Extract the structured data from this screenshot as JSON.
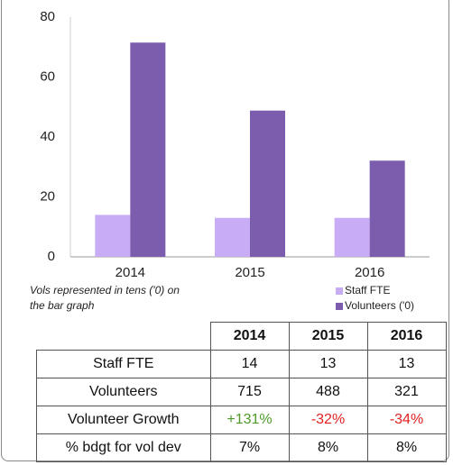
{
  "chart_data": {
    "type": "bar",
    "categories": [
      "2014",
      "2015",
      "2016"
    ],
    "series": [
      {
        "name": "Staff FTE",
        "color": "#c8acf6",
        "values": [
          14,
          13,
          13
        ]
      },
      {
        "name": "Volunteers ('0)",
        "color": "#7b5cad",
        "values": [
          71.5,
          48.8,
          32.1
        ]
      }
    ],
    "ylim": [
      0,
      80
    ],
    "yticks": [
      0,
      20,
      40,
      60,
      80
    ],
    "grid": false,
    "note": "Vols represented in tens ('0) on the bar graph"
  },
  "table": {
    "header": [
      "2014",
      "2015",
      "2016"
    ],
    "rows": [
      {
        "label": "Staff FTE",
        "cells": [
          "14",
          "13",
          "13"
        ]
      },
      {
        "label": "Volunteers",
        "cells": [
          "715",
          "488",
          "321"
        ]
      },
      {
        "label": "Volunteer Growth",
        "cells": [
          "+131%",
          "-32%",
          "-34%"
        ],
        "colors": [
          "#4e9a28",
          "#e02020",
          "#e02020"
        ]
      },
      {
        "label": "% bdgt for vol dev",
        "cells": [
          "7%",
          "8%",
          "8%"
        ]
      }
    ]
  }
}
